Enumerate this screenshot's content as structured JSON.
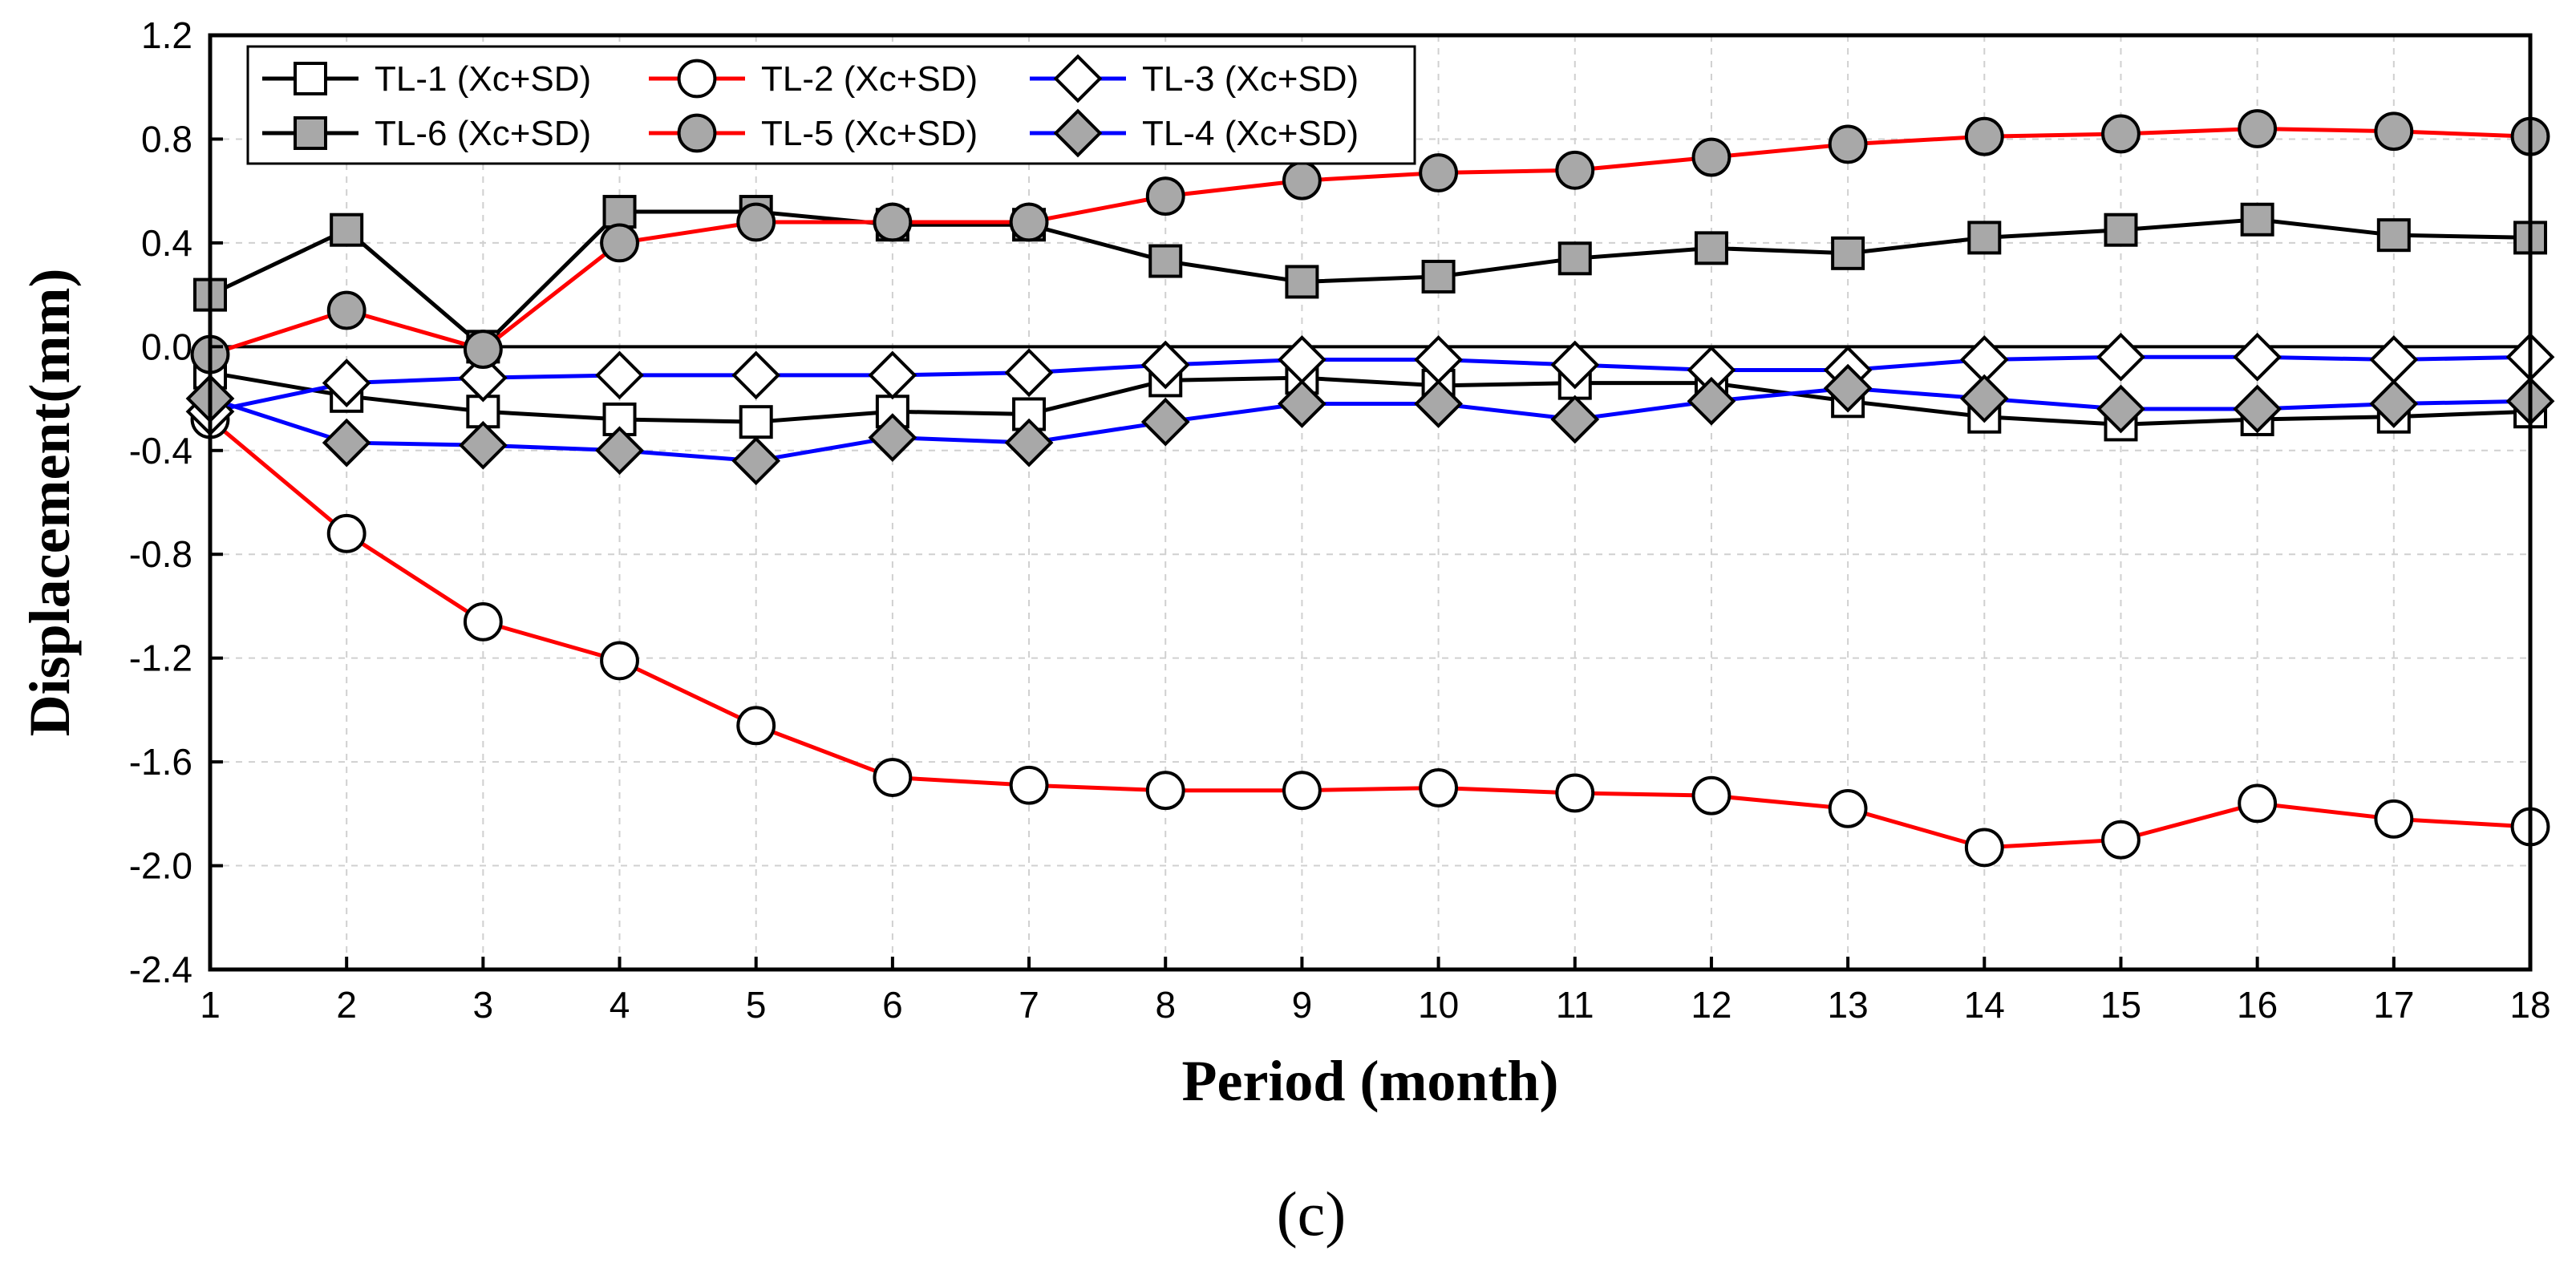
{
  "chart_data": {
    "type": "line",
    "title": "",
    "xlabel": "Period (month)",
    "ylabel": "Displacement(mm)",
    "caption": "(c)",
    "xlim": [
      1,
      18
    ],
    "ylim": [
      -2.4,
      1.2
    ],
    "x_ticks": [
      1,
      2,
      3,
      4,
      5,
      6,
      7,
      8,
      9,
      10,
      11,
      12,
      13,
      14,
      15,
      16,
      17,
      18
    ],
    "y_ticks": [
      "1.2",
      "0.8",
      "0.4",
      "0.0",
      "-0.4",
      "-0.8",
      "-1.2",
      "-1.6",
      "-2.0",
      "-2.4"
    ],
    "grid": true,
    "legend_position": "top-left",
    "reference_line": 0.0,
    "x": [
      1,
      2,
      3,
      4,
      5,
      6,
      7,
      8,
      9,
      10,
      11,
      12,
      13,
      14,
      15,
      16,
      17,
      18
    ],
    "series": [
      {
        "name": "TL-1 (Xc+SD)",
        "color": "#000000",
        "marker": "square",
        "filled": false,
        "values": [
          -0.1,
          -0.19,
          -0.25,
          -0.28,
          -0.29,
          -0.25,
          -0.26,
          -0.13,
          -0.12,
          -0.15,
          -0.14,
          -0.14,
          -0.21,
          -0.27,
          -0.3,
          -0.28,
          -0.27,
          -0.25
        ]
      },
      {
        "name": "TL-2 (Xc+SD)",
        "color": "#ff0000",
        "marker": "circle",
        "filled": false,
        "values": [
          -0.28,
          -0.72,
          -1.06,
          -1.21,
          -1.46,
          -1.66,
          -1.69,
          -1.71,
          -1.71,
          -1.7,
          -1.72,
          -1.73,
          -1.78,
          -1.93,
          -1.9,
          -1.76,
          -1.82,
          -1.85
        ]
      },
      {
        "name": "TL-3 (Xc+SD)",
        "color": "#0000ff",
        "marker": "diamond",
        "filled": false,
        "values": [
          -0.25,
          -0.14,
          -0.12,
          -0.11,
          -0.11,
          -0.11,
          -0.1,
          -0.07,
          -0.05,
          -0.05,
          -0.07,
          -0.09,
          -0.09,
          -0.05,
          -0.04,
          -0.04,
          -0.05,
          -0.04
        ]
      },
      {
        "name": "TL-6 (Xc+SD)",
        "color": "#000000",
        "marker": "square",
        "filled": true,
        "values": [
          0.2,
          0.45,
          0.0,
          0.52,
          0.52,
          0.47,
          0.47,
          0.33,
          0.25,
          0.27,
          0.34,
          0.38,
          0.36,
          0.42,
          0.45,
          0.49,
          0.43,
          0.42
        ]
      },
      {
        "name": "TL-5 (Xc+SD)",
        "color": "#ff0000",
        "marker": "circle",
        "filled": true,
        "values": [
          -0.03,
          0.14,
          -0.01,
          0.4,
          0.48,
          0.48,
          0.48,
          0.58,
          0.64,
          0.67,
          0.68,
          0.73,
          0.78,
          0.81,
          0.82,
          0.84,
          0.83,
          0.81
        ]
      },
      {
        "name": "TL-4 (Xc+SD)",
        "color": "#0000ff",
        "marker": "diamond",
        "filled": true,
        "values": [
          -0.2,
          -0.37,
          -0.38,
          -0.4,
          -0.44,
          -0.35,
          -0.37,
          -0.29,
          -0.22,
          -0.22,
          -0.28,
          -0.21,
          -0.16,
          -0.2,
          -0.24,
          -0.24,
          -0.22,
          -0.21
        ]
      }
    ]
  }
}
